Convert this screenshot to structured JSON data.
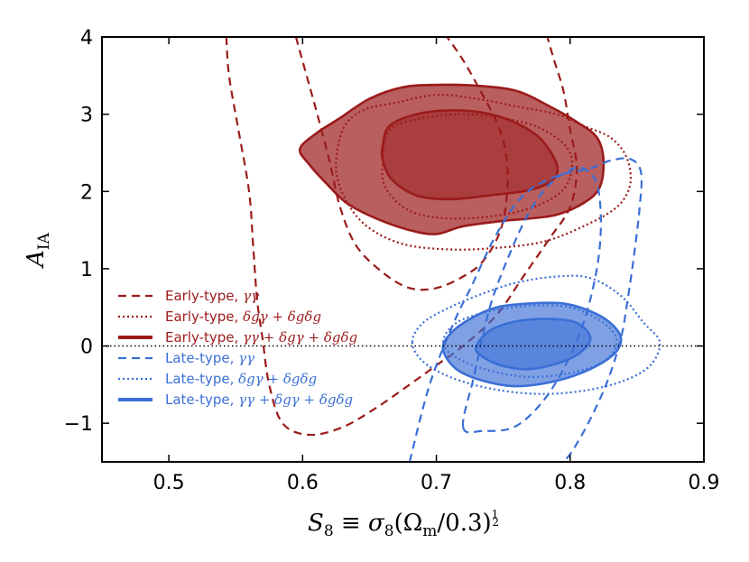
{
  "chart_data": {
    "type": "contour",
    "xlabel": "S₈ ≡ σ₈(Ωm/0.3)^½",
    "xlabel_parts": {
      "s": "S",
      "s_sub": "8",
      "equiv": " ≡ ",
      "sigma": "σ",
      "sigma_sub": "8",
      "open": "(",
      "omega": "Ω",
      "omega_sub": "m",
      "rest": "/0.3)",
      "frac_num": "1",
      "frac_den": "2"
    },
    "ylabel": "A_IA",
    "ylabel_parts": {
      "a": "A",
      "sub": "IA"
    },
    "xlim": [
      0.45,
      0.9
    ],
    "ylim": [
      -1.5,
      4.0
    ],
    "xticks": [
      0.5,
      0.6,
      0.7,
      0.8,
      0.9
    ],
    "xtick_labels": [
      "0.5",
      "0.6",
      "0.7",
      "0.8",
      "0.9"
    ],
    "yticks": [
      -1,
      0,
      1,
      2,
      3,
      4
    ],
    "ytick_labels": [
      "−1",
      "0",
      "1",
      "2",
      "3",
      "4"
    ],
    "reference_line": {
      "y": 0,
      "style": "dotted",
      "color": "#000000"
    },
    "colors": {
      "early": "#9b1b1b",
      "late": "#3b6fd6"
    },
    "legend": {
      "position": "lower-left",
      "entries": [
        {
          "prefix": "Early-type, ",
          "math": "γγ",
          "color": "#9b1b1b",
          "style": "dashed"
        },
        {
          "prefix": "Early-type, ",
          "math": "δgγ + δgδg",
          "color": "#9b1b1b",
          "style": "dotted"
        },
        {
          "prefix": "Early-type, ",
          "math": "γγ + δgγ + δgδg",
          "color": "#9b1b1b",
          "style": "solid"
        },
        {
          "prefix": "Late-type, ",
          "math": "γγ",
          "color": "#3b6fd6",
          "style": "dashed"
        },
        {
          "prefix": "Late-type, ",
          "math": "δgγ + δgδg",
          "color": "#3b6fd6",
          "style": "dotted"
        },
        {
          "prefix": "Late-type, ",
          "math": "γγ + δgγ + δgδg",
          "color": "#3b6fd6",
          "style": "solid"
        }
      ]
    },
    "contours": [
      {
        "name": "early-shear-outer",
        "sample": "Early-type",
        "probe": "γγ",
        "level": "95%",
        "style": "dashed",
        "color": "#9b1b1b",
        "open": true,
        "points": [
          [
            0.543,
            4.0
          ],
          [
            0.545,
            3.5
          ],
          [
            0.552,
            2.8
          ],
          [
            0.56,
            2.0
          ],
          [
            0.563,
            1.3
          ],
          [
            0.566,
            0.6
          ],
          [
            0.57,
            0.1
          ],
          [
            0.575,
            -0.5
          ],
          [
            0.585,
            -1.0
          ],
          [
            0.605,
            -1.15
          ],
          [
            0.63,
            -1.05
          ],
          [
            0.655,
            -0.8
          ],
          [
            0.68,
            -0.5
          ],
          [
            0.7,
            -0.25
          ],
          [
            0.72,
            0.0
          ],
          [
            0.745,
            0.4
          ],
          [
            0.765,
            0.9
          ],
          [
            0.785,
            1.4
          ],
          [
            0.8,
            1.8
          ],
          [
            0.805,
            2.3
          ],
          [
            0.8,
            2.8
          ],
          [
            0.795,
            3.3
          ],
          [
            0.788,
            3.7
          ],
          [
            0.783,
            4.0
          ]
        ]
      },
      {
        "name": "early-shear-inner",
        "sample": "Early-type",
        "probe": "γγ",
        "level": "68%",
        "style": "dashed",
        "color": "#9b1b1b",
        "open": true,
        "points": [
          [
            0.595,
            4.0
          ],
          [
            0.603,
            3.5
          ],
          [
            0.611,
            3.0
          ],
          [
            0.62,
            2.4
          ],
          [
            0.628,
            1.8
          ],
          [
            0.64,
            1.3
          ],
          [
            0.66,
            0.95
          ],
          [
            0.68,
            0.75
          ],
          [
            0.7,
            0.75
          ],
          [
            0.72,
            0.9
          ],
          [
            0.735,
            1.1
          ],
          [
            0.748,
            1.5
          ],
          [
            0.753,
            2.0
          ],
          [
            0.752,
            2.5
          ],
          [
            0.745,
            2.9
          ],
          [
            0.733,
            3.3
          ],
          [
            0.72,
            3.7
          ],
          [
            0.708,
            4.0
          ]
        ]
      },
      {
        "name": "early-clustering-outer",
        "sample": "Early-type",
        "probe": "δgγ + δgδg",
        "level": "95%",
        "style": "dotted",
        "color": "#9b1b1b",
        "points": [
          [
            0.625,
            2.3
          ],
          [
            0.63,
            2.8
          ],
          [
            0.645,
            3.05
          ],
          [
            0.67,
            3.15
          ],
          [
            0.7,
            3.25
          ],
          [
            0.73,
            3.2
          ],
          [
            0.76,
            3.1
          ],
          [
            0.79,
            3.0
          ],
          [
            0.81,
            2.85
          ],
          [
            0.83,
            2.7
          ],
          [
            0.842,
            2.45
          ],
          [
            0.845,
            2.1
          ],
          [
            0.835,
            1.8
          ],
          [
            0.81,
            1.55
          ],
          [
            0.78,
            1.35
          ],
          [
            0.745,
            1.27
          ],
          [
            0.71,
            1.25
          ],
          [
            0.675,
            1.32
          ],
          [
            0.648,
            1.55
          ],
          [
            0.632,
            1.9
          ]
        ]
      },
      {
        "name": "early-clustering-inner",
        "sample": "Early-type",
        "probe": "δgγ + δgδg",
        "level": "68%",
        "style": "dotted",
        "color": "#9b1b1b",
        "points": [
          [
            0.66,
            2.4
          ],
          [
            0.665,
            2.8
          ],
          [
            0.69,
            2.95
          ],
          [
            0.72,
            3.0
          ],
          [
            0.75,
            2.95
          ],
          [
            0.78,
            2.8
          ],
          [
            0.8,
            2.5
          ],
          [
            0.798,
            2.1
          ],
          [
            0.78,
            1.85
          ],
          [
            0.75,
            1.7
          ],
          [
            0.71,
            1.65
          ],
          [
            0.68,
            1.75
          ],
          [
            0.662,
            2.05
          ]
        ]
      },
      {
        "name": "early-combined-outer",
        "sample": "Early-type",
        "probe": "γγ + δgγ + δgδg",
        "level": "95%",
        "style": "solid",
        "color": "#9b1b1b",
        "filled": true,
        "fill_opacity": 0.7,
        "points": [
          [
            0.598,
            2.55
          ],
          [
            0.61,
            2.75
          ],
          [
            0.628,
            2.95
          ],
          [
            0.65,
            3.2
          ],
          [
            0.675,
            3.35
          ],
          [
            0.7,
            3.38
          ],
          [
            0.73,
            3.37
          ],
          [
            0.76,
            3.3
          ],
          [
            0.785,
            3.1
          ],
          [
            0.805,
            2.9
          ],
          [
            0.82,
            2.7
          ],
          [
            0.825,
            2.4
          ],
          [
            0.822,
            2.05
          ],
          [
            0.81,
            1.85
          ],
          [
            0.79,
            1.7
          ],
          [
            0.77,
            1.65
          ],
          [
            0.75,
            1.62
          ],
          [
            0.72,
            1.55
          ],
          [
            0.7,
            1.45
          ],
          [
            0.68,
            1.5
          ],
          [
            0.655,
            1.65
          ],
          [
            0.633,
            1.85
          ],
          [
            0.618,
            2.1
          ],
          [
            0.605,
            2.35
          ]
        ]
      },
      {
        "name": "early-combined-inner",
        "sample": "Early-type",
        "probe": "γγ + δgγ + δgδg",
        "level": "68%",
        "style": "solid",
        "color": "#9b1b1b",
        "filled": true,
        "fill_opacity": 0.5,
        "points": [
          [
            0.66,
            2.6
          ],
          [
            0.665,
            2.85
          ],
          [
            0.685,
            3.0
          ],
          [
            0.71,
            3.05
          ],
          [
            0.735,
            3.02
          ],
          [
            0.758,
            2.9
          ],
          [
            0.778,
            2.68
          ],
          [
            0.79,
            2.35
          ],
          [
            0.787,
            2.15
          ],
          [
            0.77,
            2.02
          ],
          [
            0.74,
            1.95
          ],
          [
            0.71,
            1.9
          ],
          [
            0.685,
            1.95
          ],
          [
            0.667,
            2.15
          ],
          [
            0.66,
            2.4
          ]
        ]
      },
      {
        "name": "late-shear-outer",
        "sample": "Late-type",
        "probe": "γγ",
        "level": "95%",
        "style": "dashed",
        "color": "#3b6fd6",
        "open": true,
        "points": [
          [
            0.68,
            -1.5
          ],
          [
            0.695,
            -0.5
          ],
          [
            0.713,
            0.3
          ],
          [
            0.727,
            0.8
          ],
          [
            0.745,
            1.45
          ],
          [
            0.765,
            1.95
          ],
          [
            0.79,
            2.2
          ],
          [
            0.815,
            2.3
          ],
          [
            0.83,
            2.4
          ],
          [
            0.845,
            2.42
          ],
          [
            0.853,
            2.25
          ],
          [
            0.852,
            1.8
          ],
          [
            0.848,
            1.2
          ],
          [
            0.843,
            0.6
          ],
          [
            0.838,
            0.1
          ],
          [
            0.828,
            -0.45
          ],
          [
            0.815,
            -0.95
          ],
          [
            0.802,
            -1.35
          ],
          [
            0.795,
            -1.5
          ]
        ]
      },
      {
        "name": "late-shear-inner",
        "sample": "Late-type",
        "probe": "γγ",
        "level": "68%",
        "style": "dashed",
        "color": "#3b6fd6",
        "points": [
          [
            0.72,
            -1.05
          ],
          [
            0.728,
            -0.4
          ],
          [
            0.74,
            0.5
          ],
          [
            0.755,
            1.2
          ],
          [
            0.77,
            1.75
          ],
          [
            0.785,
            2.1
          ],
          [
            0.8,
            2.28
          ],
          [
            0.81,
            2.3
          ],
          [
            0.82,
            2.1
          ],
          [
            0.823,
            1.6
          ],
          [
            0.82,
            1.0
          ],
          [
            0.81,
            0.3
          ],
          [
            0.795,
            -0.3
          ],
          [
            0.778,
            -0.75
          ],
          [
            0.758,
            -1.05
          ],
          [
            0.735,
            -1.1
          ]
        ]
      },
      {
        "name": "late-clustering-outer",
        "sample": "Late-type",
        "probe": "δgγ + δgδg",
        "level": "95%",
        "style": "dotted",
        "color": "#3b6fd6",
        "points": [
          [
            0.682,
            0.05
          ],
          [
            0.69,
            0.3
          ],
          [
            0.71,
            0.5
          ],
          [
            0.735,
            0.68
          ],
          [
            0.76,
            0.82
          ],
          [
            0.79,
            0.9
          ],
          [
            0.815,
            0.88
          ],
          [
            0.838,
            0.65
          ],
          [
            0.855,
            0.3
          ],
          [
            0.867,
            0.05
          ],
          [
            0.86,
            -0.25
          ],
          [
            0.84,
            -0.45
          ],
          [
            0.81,
            -0.58
          ],
          [
            0.775,
            -0.62
          ],
          [
            0.74,
            -0.55
          ],
          [
            0.71,
            -0.4
          ],
          [
            0.69,
            -0.2
          ]
        ]
      },
      {
        "name": "late-clustering-inner",
        "sample": "Late-type",
        "probe": "δgγ + δgδg",
        "level": "68%",
        "style": "dotted",
        "color": "#3b6fd6",
        "points": [
          [
            0.705,
            0.05
          ],
          [
            0.715,
            0.3
          ],
          [
            0.74,
            0.45
          ],
          [
            0.77,
            0.52
          ],
          [
            0.8,
            0.5
          ],
          [
            0.825,
            0.3
          ],
          [
            0.835,
            0.05
          ],
          [
            0.825,
            -0.2
          ],
          [
            0.8,
            -0.35
          ],
          [
            0.77,
            -0.4
          ],
          [
            0.74,
            -0.32
          ],
          [
            0.715,
            -0.15
          ]
        ]
      },
      {
        "name": "late-combined-outer",
        "sample": "Late-type",
        "probe": "γγ + δgγ + δgδg",
        "level": "95%",
        "style": "solid",
        "color": "#3b6fd6",
        "filled": true,
        "fill_opacity": 0.65,
        "points": [
          [
            0.705,
            -0.05
          ],
          [
            0.71,
            0.15
          ],
          [
            0.725,
            0.35
          ],
          [
            0.745,
            0.5
          ],
          [
            0.77,
            0.55
          ],
          [
            0.795,
            0.55
          ],
          [
            0.815,
            0.45
          ],
          [
            0.83,
            0.3
          ],
          [
            0.838,
            0.1
          ],
          [
            0.833,
            -0.1
          ],
          [
            0.815,
            -0.3
          ],
          [
            0.79,
            -0.45
          ],
          [
            0.76,
            -0.52
          ],
          [
            0.735,
            -0.45
          ],
          [
            0.715,
            -0.3
          ]
        ]
      },
      {
        "name": "late-combined-inner",
        "sample": "Late-type",
        "probe": "γγ + δgγ + δgδg",
        "level": "68%",
        "style": "solid",
        "color": "#3b6fd6",
        "filled": true,
        "fill_opacity": 0.55,
        "points": [
          [
            0.73,
            0.0
          ],
          [
            0.74,
            0.2
          ],
          [
            0.76,
            0.32
          ],
          [
            0.785,
            0.35
          ],
          [
            0.805,
            0.3
          ],
          [
            0.815,
            0.12
          ],
          [
            0.81,
            -0.05
          ],
          [
            0.795,
            -0.2
          ],
          [
            0.77,
            -0.3
          ],
          [
            0.748,
            -0.25
          ],
          [
            0.733,
            -0.12
          ]
        ]
      }
    ]
  }
}
